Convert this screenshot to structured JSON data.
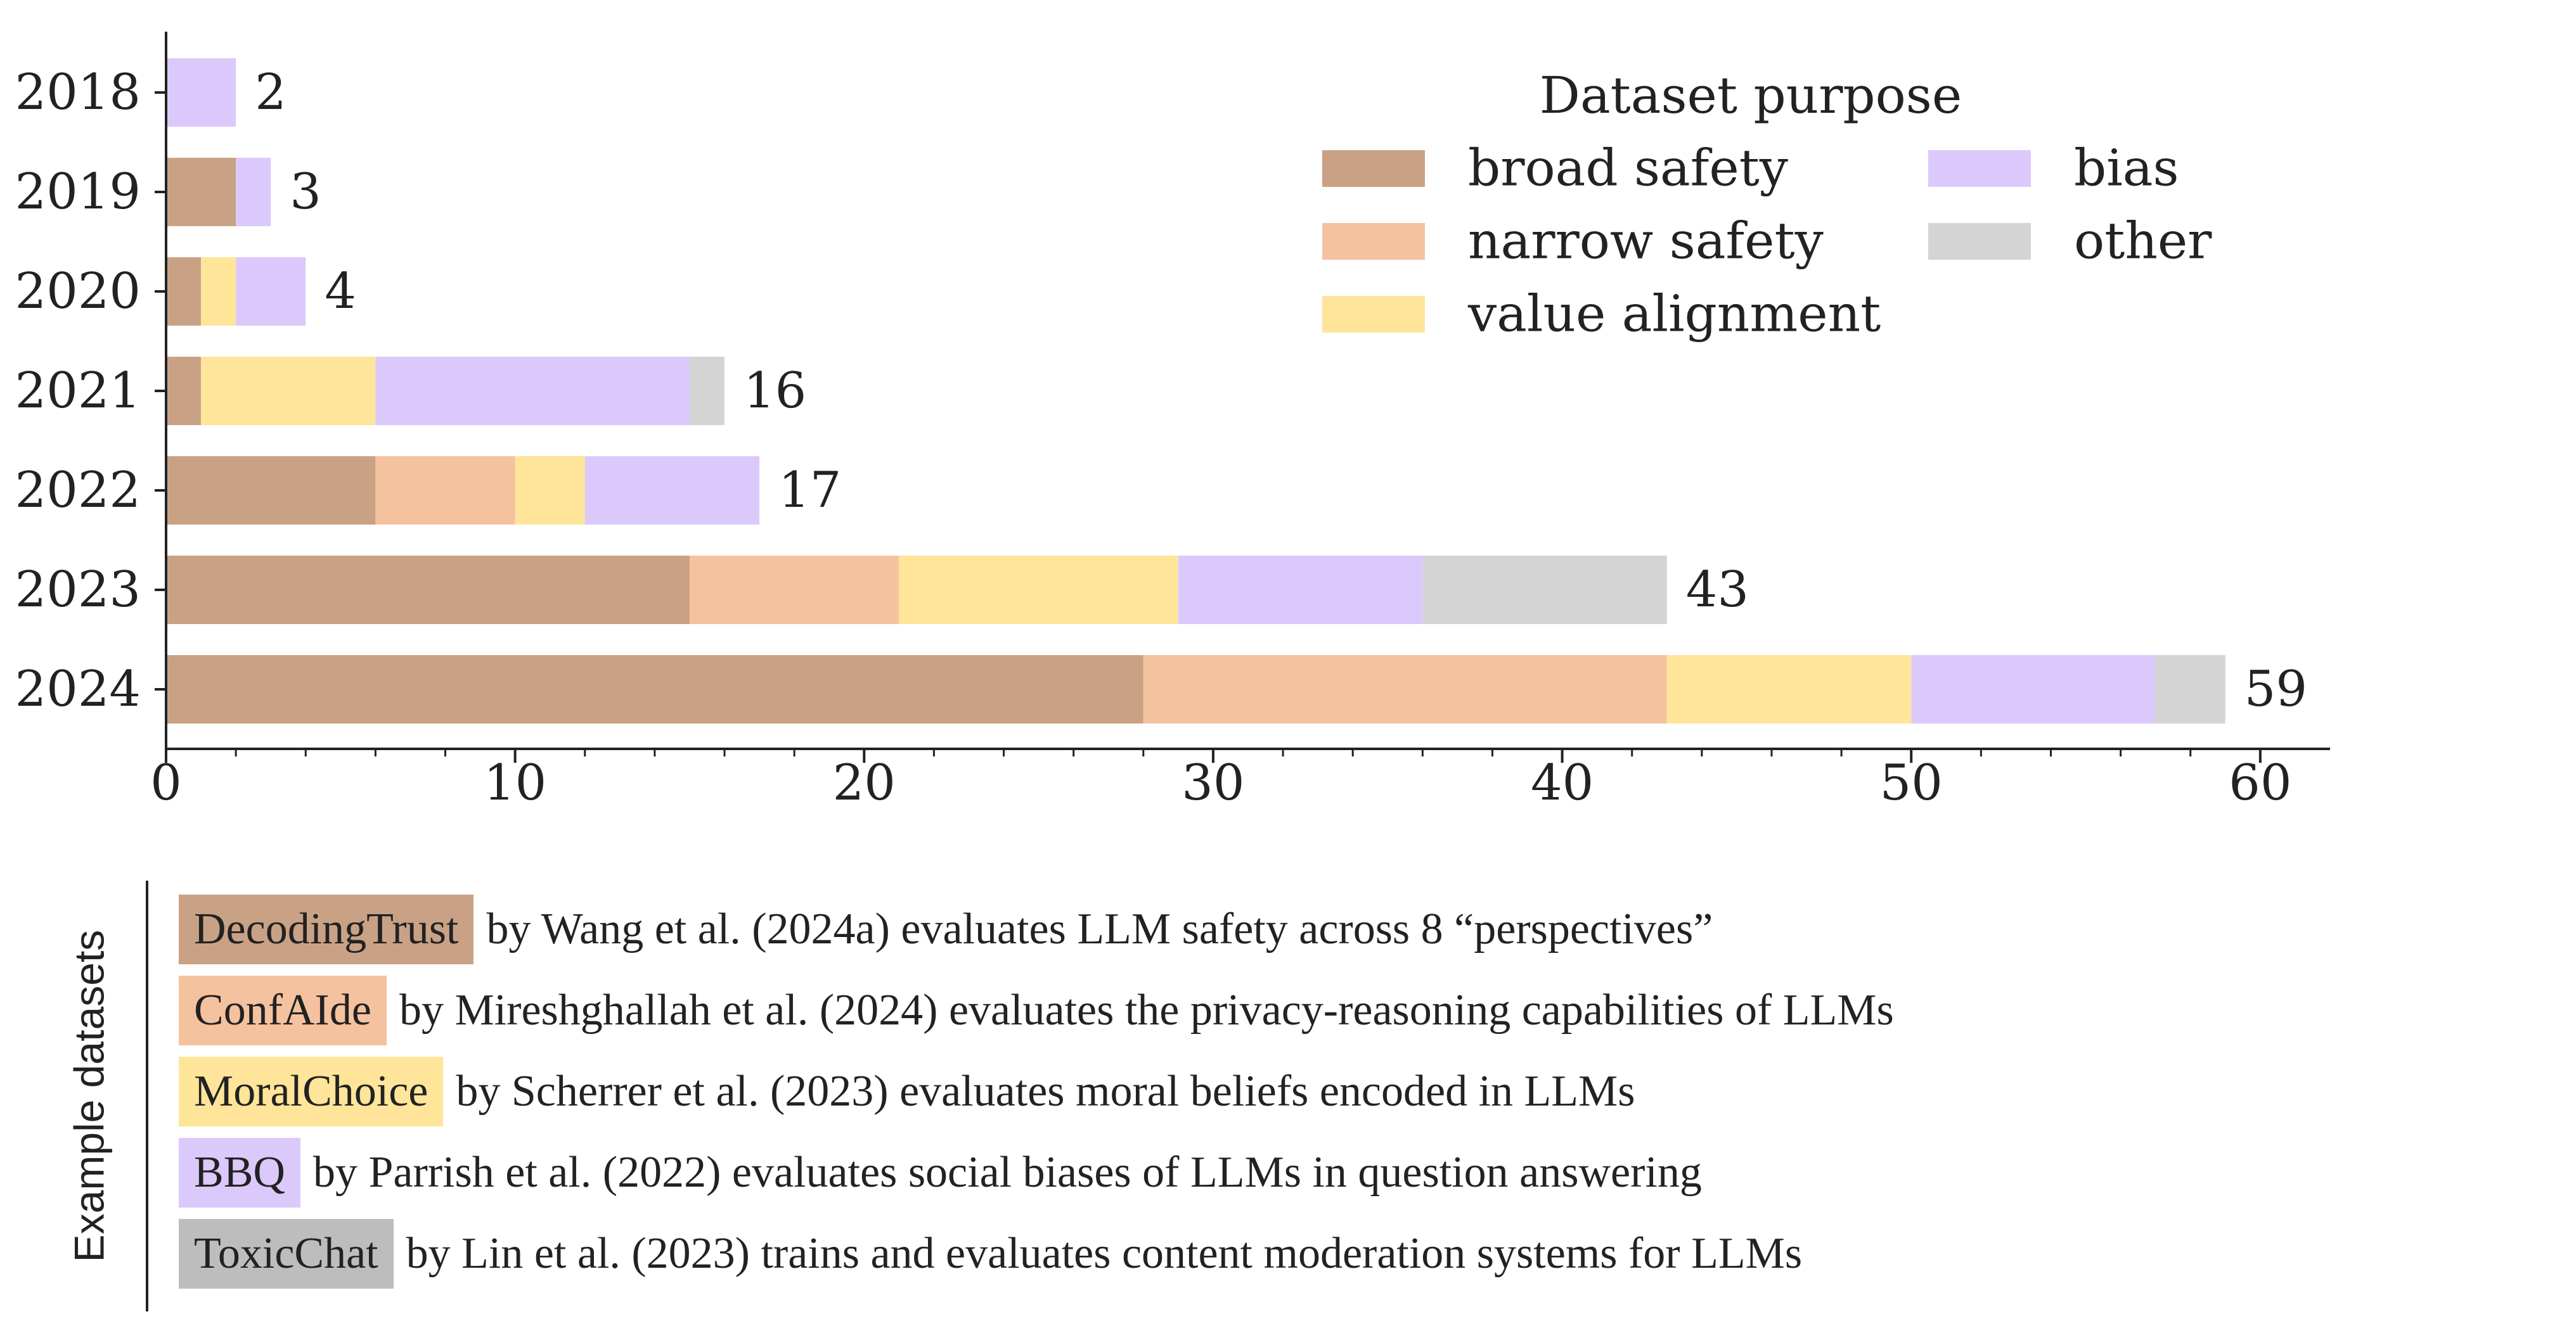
{
  "chart_data": {
    "type": "bar",
    "orientation": "horizontal",
    "stacked": true,
    "categories": [
      "2018",
      "2019",
      "2020",
      "2021",
      "2022",
      "2023",
      "2024"
    ],
    "series": [
      {
        "name": "broad safety",
        "color": "#c9a286",
        "values": [
          0,
          2,
          1,
          1,
          6,
          15,
          28
        ]
      },
      {
        "name": "narrow safety",
        "color": "#f5c2a0",
        "values": [
          0,
          0,
          0,
          0,
          4,
          6,
          15
        ]
      },
      {
        "name": "value alignment",
        "color": "#ffe599",
        "values": [
          0,
          0,
          1,
          5,
          2,
          8,
          7
        ]
      },
      {
        "name": "bias",
        "color": "#dcc9fb",
        "values": [
          2,
          1,
          2,
          9,
          5,
          7,
          7
        ]
      },
      {
        "name": "other",
        "color": "#d4d4d4",
        "values": [
          0,
          0,
          0,
          1,
          0,
          7,
          2
        ]
      }
    ],
    "totals": [
      "2",
      "3",
      "4",
      "16",
      "17",
      "43",
      "59"
    ],
    "xticks": [
      "0",
      "10",
      "20",
      "30",
      "40",
      "50",
      "60"
    ],
    "xlim": [
      0,
      62
    ],
    "legend_title": "Dataset purpose",
    "legend_position": "top-right",
    "xlabel": "",
    "ylabel": ""
  },
  "examples": {
    "axis_title": "Example datasets",
    "items": [
      {
        "name": "DecodingTrust",
        "description": "by Wang et al. (2024a) evaluates LLM safety across 8 “perspectives”",
        "color": "#c9a286"
      },
      {
        "name": "ConfAIde",
        "description": "by Mireshghallah et al. (2024) evaluates the privacy-reasoning capabilities of LLMs",
        "color": "#f5c2a0"
      },
      {
        "name": "MoralChoice",
        "description": "by Scherrer et al. (2023) evaluates moral beliefs encoded in LLMs",
        "color": "#ffe599"
      },
      {
        "name": "BBQ",
        "description": "by Parrish et al. (2022) evaluates social biases of LLMs in question answering",
        "color": "#dcc9fb"
      },
      {
        "name": "ToxicChat",
        "description": "by Lin et al. (2023) trains and evaluates content moderation systems for LLMs",
        "color": "#bdbdbd"
      }
    ]
  }
}
